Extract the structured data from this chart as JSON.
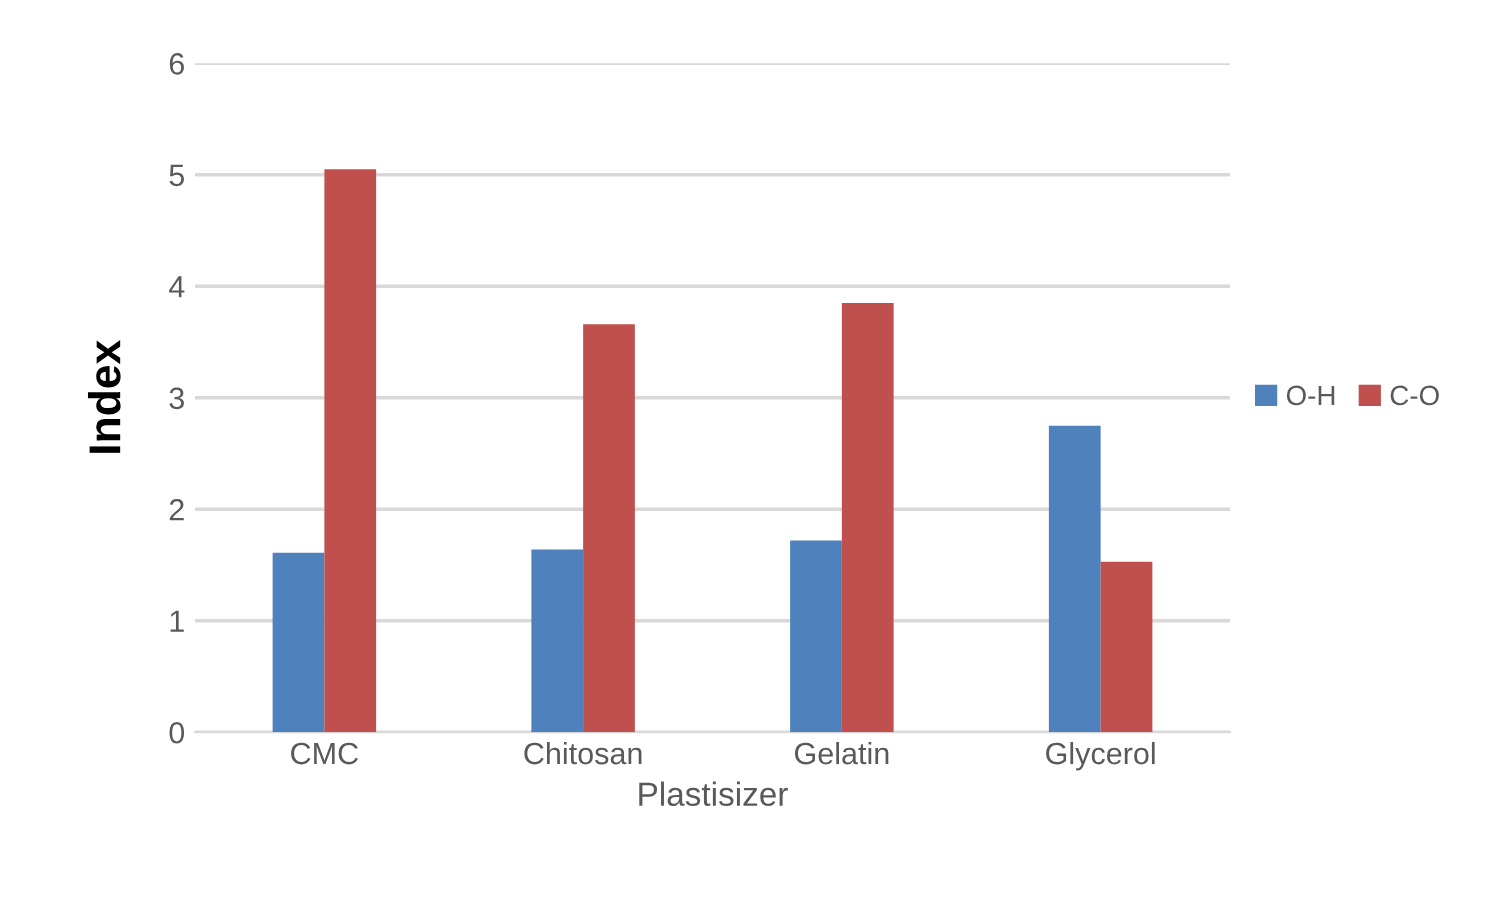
{
  "chart_data": {
    "type": "bar",
    "xlabel": "Plastisizer",
    "ylabel": "Index",
    "categories": [
      "CMC",
      "Chitosan",
      "Gelatin",
      "Glycerol"
    ],
    "series": [
      {
        "name": "O-H",
        "color": "#4f81bd",
        "values": [
          1.61,
          1.64,
          1.72,
          2.75
        ]
      },
      {
        "name": "C-O",
        "color": "#c0504d",
        "values": [
          5.05,
          3.66,
          3.85,
          1.53
        ]
      }
    ],
    "ylim": [
      0,
      6
    ],
    "yticks": [
      0,
      1,
      2,
      3,
      4,
      5,
      6
    ],
    "grid": "y",
    "legend": "right"
  }
}
